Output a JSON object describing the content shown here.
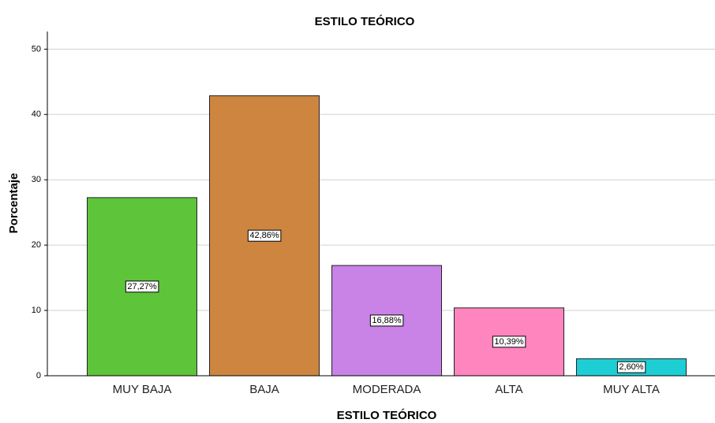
{
  "chart_data": {
    "type": "bar",
    "title": "ESTILO TEÓRICO",
    "x_label": "ESTILO TEÓRICO",
    "y_label": "Porcentaje",
    "categories": [
      "MUY BAJA",
      "BAJA",
      "MODERADA",
      "ALTA",
      "MUY ALTA"
    ],
    "values": [
      27.27,
      42.86,
      16.88,
      10.39,
      2.6
    ],
    "value_labels": [
      "27,27%",
      "42,86%",
      "16,88%",
      "10,39%",
      "2,60%"
    ],
    "colors": [
      "#5ec43a",
      "#cd853f",
      "#c982e6",
      "#ff85bf",
      "#1dcfd4"
    ],
    "ylim": [
      0,
      52.7
    ],
    "yticks": [
      0,
      10,
      20,
      30,
      40,
      50
    ],
    "grid": true
  }
}
